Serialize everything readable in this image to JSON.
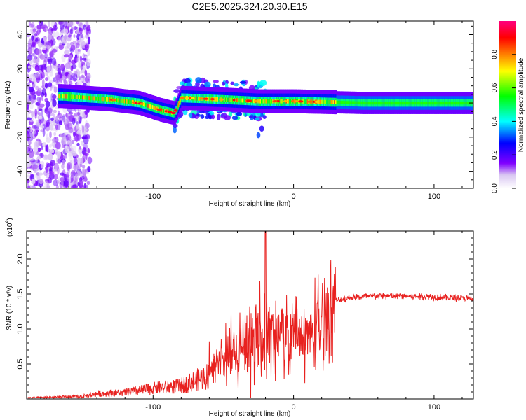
{
  "title": "C2E5.2025.324.20.30.E15",
  "chart_data": [
    {
      "type": "heatmap",
      "name": "spectrogram",
      "xlabel": "Height of straight line (km)",
      "ylabel": "Frequency (Hz)",
      "xlim": [
        -190,
        128
      ],
      "ylim": [
        -50,
        48
      ],
      "xticks": [
        -100,
        0,
        100
      ],
      "yticks": [
        -40,
        -20,
        0,
        20,
        40
      ],
      "colorbar": {
        "label": "Normalized spectral amplitude",
        "range": [
          0,
          1
        ],
        "ticks": [
          0.0,
          0.2,
          0.4,
          0.6,
          0.8
        ],
        "tick_labels": [
          "0.0",
          "0.2",
          "0.4",
          "0.6",
          "0.8"
        ],
        "colors": [
          "#ffffff",
          "#8000ff",
          "#0000ff",
          "#00ffff",
          "#00ff00",
          "#ffff00",
          "#ff8000",
          "#ff0000",
          "#ff0080"
        ]
      },
      "ridge": {
        "description_points": [
          {
            "x": -165,
            "y": 4
          },
          {
            "x": -130,
            "y": 2
          },
          {
            "x": -110,
            "y": 0
          },
          {
            "x": -95,
            "y": -4
          },
          {
            "x": -85,
            "y": -6
          },
          {
            "x": -80,
            "y": 3
          },
          {
            "x": -50,
            "y": 2
          },
          {
            "x": -25,
            "y": 1
          },
          {
            "x": 0,
            "y": 1
          },
          {
            "x": 50,
            "y": 0
          },
          {
            "x": 128,
            "y": 0
          }
        ]
      }
    },
    {
      "type": "line",
      "name": "snr",
      "xlabel": "Height of straight line (km)",
      "ylabel": "SNR (10 * v/v)",
      "scale_label_base": "(x10",
      "scale_label_exp": "4",
      "scale_label_end": ")",
      "xlim": [
        -190,
        128
      ],
      "ylim": [
        0,
        2.4
      ],
      "xticks": [
        -100,
        0,
        100
      ],
      "yticks": [
        0.5,
        1.0,
        1.5,
        2.0
      ],
      "ytick_labels": [
        "0.5",
        "1.0",
        "1.5",
        "2.0"
      ],
      "color": "#e8211f",
      "envelope": [
        {
          "x": -190,
          "y": 0.02
        },
        {
          "x": -150,
          "y": 0.05
        },
        {
          "x": -140,
          "y": 0.1
        },
        {
          "x": -120,
          "y": 0.12
        },
        {
          "x": -100,
          "y": 0.2
        },
        {
          "x": -80,
          "y": 0.25
        },
        {
          "x": -60,
          "y": 0.45
        },
        {
          "x": -40,
          "y": 0.75
        },
        {
          "x": -30,
          "y": 0.85
        },
        {
          "x": -20,
          "y": 0.95
        },
        {
          "x": -10,
          "y": 0.95
        },
        {
          "x": 0,
          "y": 0.9
        },
        {
          "x": 10,
          "y": 0.9
        },
        {
          "x": 20,
          "y": 1.1
        },
        {
          "x": 25,
          "y": 1.3
        },
        {
          "x": 30,
          "y": 1.4
        },
        {
          "x": 40,
          "y": 1.45
        },
        {
          "x": 60,
          "y": 1.47
        },
        {
          "x": 80,
          "y": 1.47
        },
        {
          "x": 100,
          "y": 1.46
        },
        {
          "x": 128,
          "y": 1.43
        }
      ],
      "peak": {
        "x": -20,
        "y": 2.4
      }
    }
  ]
}
